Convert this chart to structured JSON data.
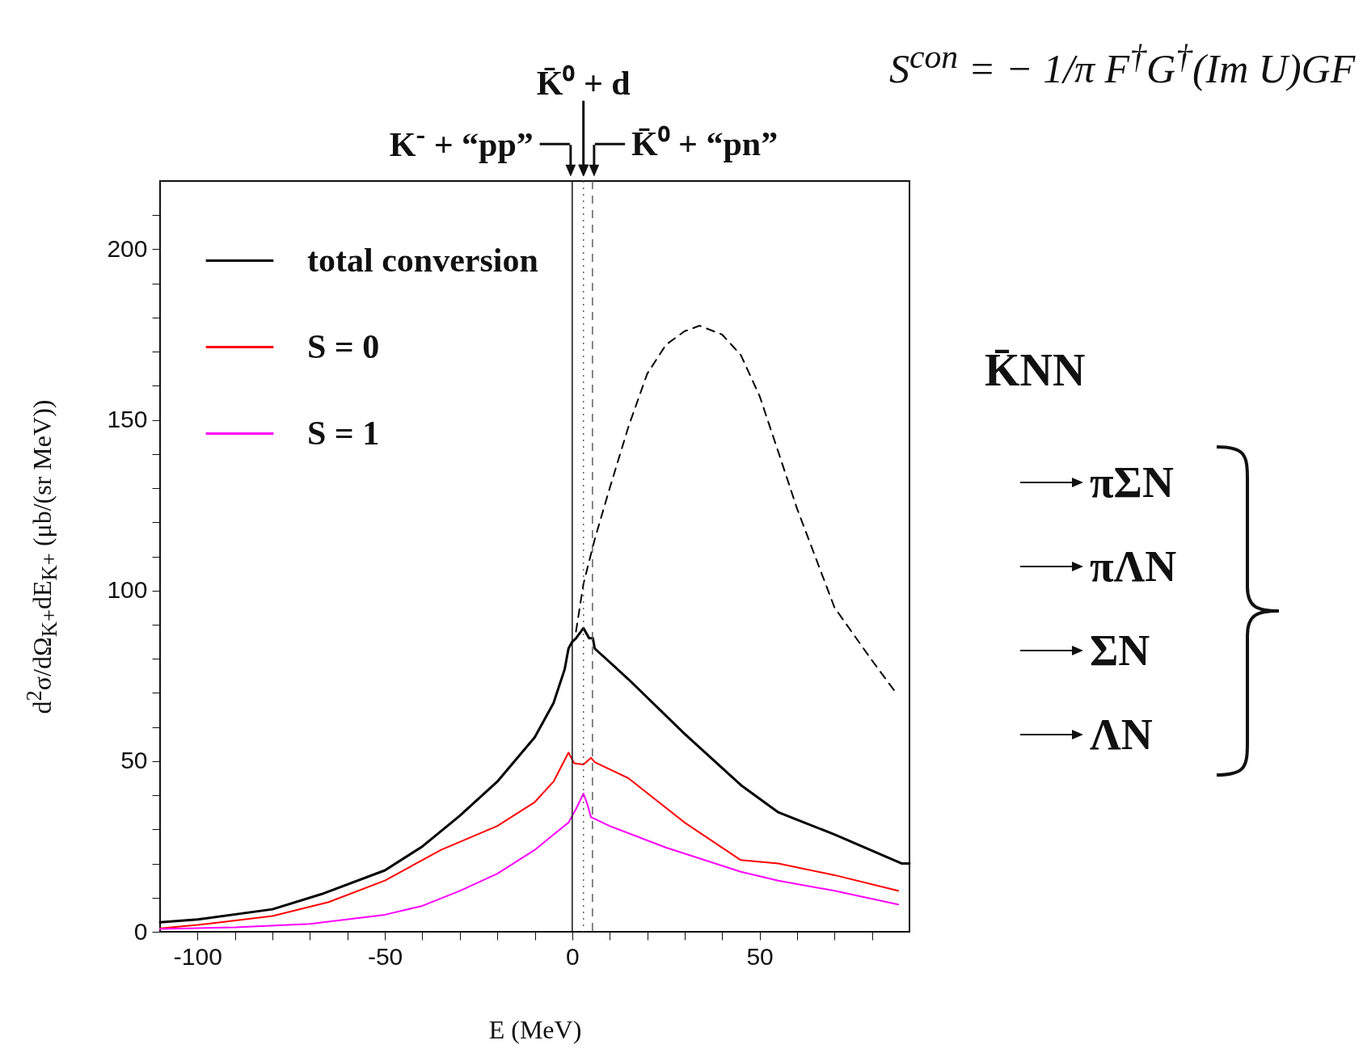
{
  "chart_data": {
    "type": "line",
    "xlabel": "E (MeV)",
    "ylabel": "d$^{2}$σ/dΩ$_{K+}$dE$_{K+}$   (μb/(sr MeV))",
    "xlim": [
      -110,
      90
    ],
    "ylim": [
      0,
      220
    ],
    "xticks": [
      -100,
      {
        "value": -90,
        "label": null
      },
      {
        "value": -80,
        "label": null
      },
      {
        "value": -70,
        "label": null
      },
      {
        "value": -60,
        "label": null
      },
      -50,
      {
        "value": -40,
        "label": null
      },
      {
        "value": -30,
        "label": null
      },
      {
        "value": -20,
        "label": null
      },
      {
        "value": -10,
        "label": null
      },
      0,
      {
        "value": 10,
        "label": null
      },
      {
        "value": 20,
        "label": null
      },
      {
        "value": 30,
        "label": null
      },
      {
        "value": 40,
        "label": null
      },
      50,
      {
        "value": 60,
        "label": null
      },
      {
        "value": 70,
        "label": null
      },
      {
        "value": 80,
        "label": null
      }
    ],
    "yticks": [
      0,
      {
        "value": 10,
        "label": null
      },
      {
        "value": 20,
        "label": null
      },
      {
        "value": 30,
        "label": null
      },
      {
        "value": 40,
        "label": null
      },
      50,
      {
        "value": 60,
        "label": null
      },
      {
        "value": 70,
        "label": null
      },
      {
        "value": 80,
        "label": null
      },
      {
        "value": 90,
        "label": null
      },
      100,
      {
        "value": 110,
        "label": null
      },
      {
        "value": 120,
        "label": null
      },
      {
        "value": 130,
        "label": null
      },
      {
        "value": 140,
        "label": null
      },
      150,
      {
        "value": 160,
        "label": null
      },
      {
        "value": 170,
        "label": null
      },
      {
        "value": 180,
        "label": null
      },
      {
        "value": 190,
        "label": null
      },
      200,
      {
        "value": 210,
        "label": null
      }
    ],
    "series": [
      {
        "name": "total conversion",
        "color": "#000000",
        "x": [
          -110,
          -100,
          -80,
          -67,
          -50,
          -40,
          -30,
          -20,
          -10,
          -5,
          -2,
          -1,
          0,
          1,
          3,
          4.5,
          5.5,
          6,
          15,
          30,
          45,
          55,
          70,
          88,
          90
        ],
        "values": [
          2.8,
          3.6,
          6.6,
          11,
          18,
          25,
          34,
          44,
          57,
          67,
          77,
          83,
          85,
          86,
          89,
          86,
          86,
          83,
          74,
          58,
          43,
          35,
          28.5,
          20,
          20
        ]
      },
      {
        "name": "S = 0",
        "color": "#ff0000",
        "x": [
          -110,
          -100,
          -80,
          -65,
          -50,
          -35,
          -20,
          -10,
          -5,
          -1,
          0.5,
          3,
          5,
          6,
          15,
          30,
          45,
          55,
          70,
          87
        ],
        "values": [
          1,
          2,
          4.6,
          8.7,
          15,
          24,
          31,
          38,
          44,
          52.5,
          49.4,
          49,
          51,
          49.7,
          45,
          32,
          21,
          20,
          16.6,
          12
        ]
      },
      {
        "name": "S = 1",
        "color": "#ff00ff",
        "x": [
          -110,
          -90,
          -70,
          -50,
          -40,
          -30,
          -20,
          -10,
          -5,
          -1,
          1,
          3,
          4,
          5,
          10,
          25,
          45,
          55,
          70,
          87
        ],
        "values": [
          0.8,
          1.3,
          2.3,
          5,
          7.6,
          12,
          17,
          24,
          28.5,
          32,
          36,
          40.5,
          37.5,
          33.6,
          31,
          24.7,
          17.6,
          15,
          12,
          8
        ]
      },
      {
        "color": "#000000",
        "line_style": "dashed",
        "x": [
          1,
          2,
          3,
          6,
          10,
          15,
          20,
          25,
          30,
          34,
          40,
          45,
          50,
          55,
          60,
          70,
          80,
          86
        ],
        "values": [
          88,
          95,
          102,
          115,
          130,
          148,
          163.5,
          172,
          176,
          177.6,
          175,
          169,
          157,
          140.6,
          124,
          95,
          79.5,
          70.6
        ]
      }
    ],
    "ref_lines": [
      {
        "axis": "x",
        "value": 0,
        "label": "K$^{-}$ + “pp”",
        "line_style": "solid",
        "color": "#000000"
      },
      {
        "axis": "x",
        "value": 3,
        "label": "K̄⁰ + d",
        "line_style": "dotted",
        "color": "#555555"
      },
      {
        "axis": "x",
        "value": 5.4,
        "label": "K̄⁰ + “pn”",
        "line_style": "dashed",
        "color": "#555555"
      }
    ],
    "annotations": [
      "S$^{con}$  =  − 1/π  F$^{†}$G$^{†}$(Im U)GF",
      "K̄NN",
      "πΣN",
      "πΛN",
      "ΣN",
      "ΛN"
    ],
    "legend": "top left",
    "grid": false,
    "marker": "none",
    "line_style": "solid"
  }
}
